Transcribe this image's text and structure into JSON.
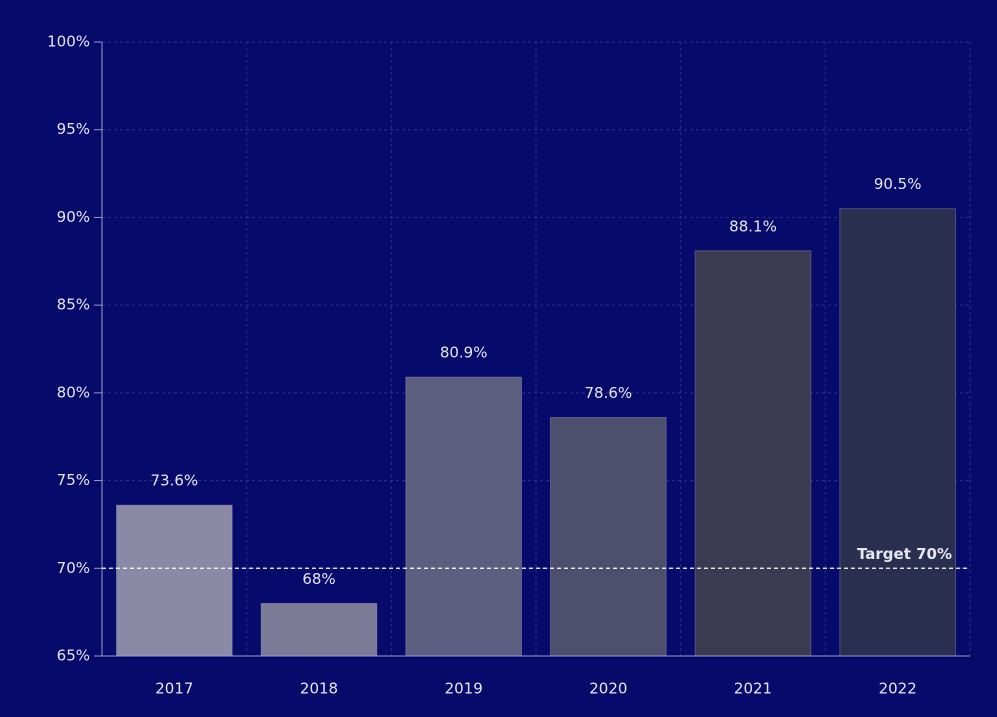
{
  "chart_data": {
    "type": "bar",
    "categories": [
      "2017",
      "2018",
      "2019",
      "2020",
      "2021",
      "2022"
    ],
    "values": [
      73.6,
      68,
      80.9,
      78.6,
      88.1,
      90.5
    ],
    "value_labels": [
      "73.6%",
      "68%",
      "80.9%",
      "78.6%",
      "88.1%",
      "90.5%"
    ],
    "colors": [
      "#8a8aa6",
      "#7c7c99",
      "#5c5f80",
      "#4d4f6c",
      "#3c3a50",
      "#2b2f4f"
    ],
    "ylim": [
      65,
      100
    ],
    "yticks": [
      {
        "value": 65,
        "label": "65%"
      },
      {
        "value": 70,
        "label": "70%"
      },
      {
        "value": 75,
        "label": "75%"
      },
      {
        "value": 80,
        "label": "80%"
      },
      {
        "value": 85,
        "label": "85%"
      },
      {
        "value": 90,
        "label": "90%"
      },
      {
        "value": 95,
        "label": "95%"
      },
      {
        "value": 100,
        "label": "100%"
      }
    ],
    "grid": true,
    "target": {
      "value": 70,
      "label": "Target 70%"
    }
  }
}
